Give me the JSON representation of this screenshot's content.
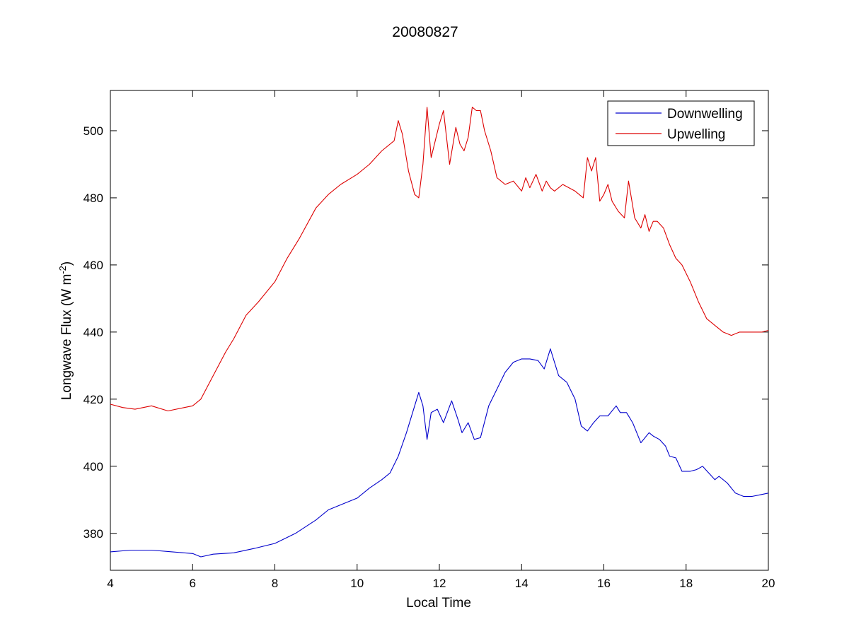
{
  "chart_data": {
    "type": "line",
    "title": "20080827",
    "xlabel": "Local Time",
    "ylabel_main": "Longwave Flux (W m",
    "ylabel_sup": "-2",
    "ylabel_end": ")",
    "xlim": [
      4,
      20
    ],
    "ylim": [
      369,
      512
    ],
    "xticks": [
      4,
      6,
      8,
      10,
      12,
      14,
      16,
      18,
      20
    ],
    "yticks": [
      380,
      400,
      420,
      440,
      460,
      480,
      500
    ],
    "grid": false,
    "legend_position": "top-right",
    "series": [
      {
        "name": "Downwelling",
        "color": "#0000cc",
        "x": [
          4.0,
          4.5,
          5.0,
          5.5,
          6.0,
          6.2,
          6.5,
          7.0,
          7.5,
          8.0,
          8.5,
          9.0,
          9.3,
          9.6,
          10.0,
          10.3,
          10.6,
          10.8,
          11.0,
          11.2,
          11.35,
          11.5,
          11.6,
          11.7,
          11.8,
          11.95,
          12.1,
          12.3,
          12.45,
          12.55,
          12.7,
          12.85,
          13.0,
          13.2,
          13.4,
          13.6,
          13.8,
          14.0,
          14.2,
          14.4,
          14.55,
          14.7,
          14.75,
          14.9,
          15.1,
          15.3,
          15.45,
          15.6,
          15.75,
          15.9,
          16.1,
          16.3,
          16.4,
          16.55,
          16.7,
          16.9,
          17.1,
          17.2,
          17.35,
          17.5,
          17.6,
          17.75,
          17.9,
          18.1,
          18.25,
          18.4,
          18.55,
          18.7,
          18.8,
          19.0,
          19.2,
          19.4,
          19.6,
          19.8,
          20.0
        ],
        "y": [
          374.5,
          375,
          375,
          374.5,
          374,
          373,
          373.8,
          374.2,
          375.5,
          377,
          380,
          384,
          387,
          388.5,
          390.5,
          393.5,
          396,
          398,
          403,
          410,
          416,
          422,
          418,
          408,
          416,
          417,
          413,
          419.5,
          414,
          410,
          413,
          408,
          408.5,
          418,
          423,
          428,
          431,
          432,
          432,
          431.5,
          429,
          435,
          433,
          427,
          425,
          420,
          412,
          410.5,
          413,
          415,
          415,
          418,
          416,
          416,
          413,
          407,
          410,
          409,
          408,
          406,
          403,
          402.5,
          398.5,
          398.5,
          399,
          400,
          398,
          396,
          397,
          395,
          392,
          391,
          391,
          391.5,
          392
        ]
      },
      {
        "name": "Upwelling",
        "color": "#dd0000",
        "x": [
          4.0,
          4.3,
          4.6,
          5.0,
          5.4,
          5.8,
          6.0,
          6.2,
          6.5,
          6.8,
          7.0,
          7.3,
          7.6,
          8.0,
          8.3,
          8.6,
          9.0,
          9.3,
          9.6,
          10.0,
          10.3,
          10.6,
          10.9,
          11.0,
          11.1,
          11.25,
          11.4,
          11.5,
          11.6,
          11.7,
          11.8,
          11.9,
          12.0,
          12.1,
          12.25,
          12.4,
          12.5,
          12.6,
          12.7,
          12.8,
          12.9,
          13.0,
          13.1,
          13.25,
          13.4,
          13.6,
          13.8,
          14.0,
          14.1,
          14.2,
          14.35,
          14.5,
          14.6,
          14.7,
          14.8,
          15.0,
          15.3,
          15.5,
          15.6,
          15.7,
          15.8,
          15.9,
          16.0,
          16.1,
          16.2,
          16.35,
          16.5,
          16.6,
          16.75,
          16.9,
          17.0,
          17.1,
          17.2,
          17.3,
          17.45,
          17.6,
          17.75,
          17.9,
          18.1,
          18.3,
          18.5,
          18.7,
          18.9,
          19.1,
          19.3,
          19.5,
          19.7,
          19.85,
          20.0
        ],
        "y": [
          418.5,
          417.5,
          417,
          418,
          416.5,
          417.5,
          418,
          420,
          427,
          434,
          438,
          445,
          449,
          455,
          462,
          468,
          477,
          481,
          484,
          487,
          490,
          494,
          497,
          503,
          499,
          488,
          481,
          480,
          490,
          507,
          492,
          497,
          502,
          506,
          490,
          501,
          496,
          494,
          498,
          507,
          506,
          506,
          500,
          494,
          486,
          484,
          485,
          482,
          486,
          483,
          487,
          482,
          485,
          483,
          482,
          484,
          482,
          480,
          492,
          488,
          492,
          479,
          481,
          484,
          479,
          476,
          474,
          485,
          474,
          471,
          475,
          470,
          473,
          473,
          471,
          466,
          462,
          460,
          455,
          449,
          444,
          442,
          440,
          439,
          440,
          440,
          440,
          440,
          440.5
        ]
      }
    ]
  }
}
